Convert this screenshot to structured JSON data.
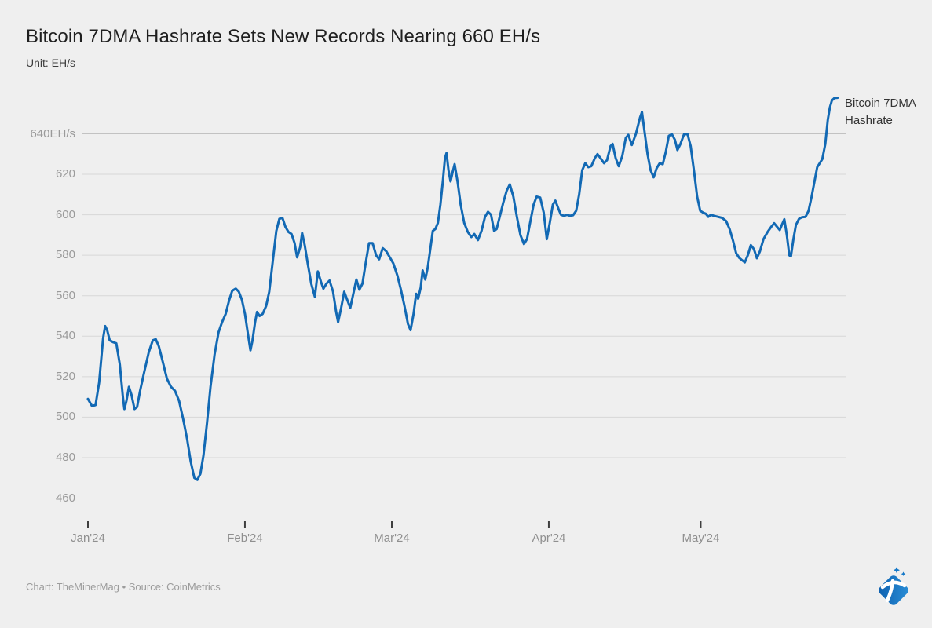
{
  "header": {
    "title": "Bitcoin 7DMA Hashrate Sets New Records Nearing 660 EH/s",
    "subtitle": "Unit: EH/s"
  },
  "legend": {
    "series_label": "Bitcoin 7DMA Hashrate"
  },
  "footer": {
    "credit": "Chart: TheMinerMag • Source: CoinMetrics",
    "logo": "theminermag-pickaxe-diamond-logo"
  },
  "colors": {
    "background": "#efefef",
    "line": "#1269b4",
    "gridline": "#d7d7d7",
    "gridline_top": "#c2c2c2",
    "tick_mark": "#3f3f3f",
    "axis_label": "#9a9a9a",
    "logo_blue": "#1478c8"
  },
  "chart_data": {
    "type": "line",
    "title": "Bitcoin 7DMA Hashrate Sets New Records Nearing 660 EH/s",
    "unit": "EH/s",
    "grid": true,
    "legend_position": "right-of-line-end",
    "x_axis": {
      "tick_labels": [
        "Jan'24",
        "Feb'24",
        "Mar'24",
        "Apr'24",
        "May'24"
      ],
      "tick_days": [
        0,
        31,
        60,
        91,
        121
      ],
      "range_days": [
        0,
        150
      ]
    },
    "y_axis": {
      "ticks": [
        460,
        480,
        500,
        520,
        540,
        560,
        580,
        600,
        620,
        640
      ],
      "top_tick_label": "640EH/s",
      "range": [
        455,
        662
      ]
    },
    "series": [
      {
        "name": "Bitcoin 7DMA Hashrate",
        "x_days_from_jan1_2024": [
          0,
          0.8,
          1.5,
          2.2,
          3,
          3.4,
          3.8,
          4.3,
          5,
          5.6,
          6.3,
          6.9,
          7.2,
          7.6,
          8.1,
          8.6,
          9.2,
          9.7,
          10.3,
          11,
          12,
          12.8,
          13.4,
          14,
          14.8,
          15.6,
          16.4,
          17.2,
          18,
          18.8,
          19.6,
          20.3,
          21,
          21.6,
          22.2,
          22.8,
          23.5,
          24.2,
          25,
          25.8,
          26.5,
          27.2,
          27.9,
          28.5,
          29.2,
          29.8,
          30.4,
          31,
          31.6,
          32.1,
          32.5,
          33,
          33.4,
          33.9,
          34.5,
          35.2,
          35.8,
          36.5,
          37.2,
          37.8,
          38.4,
          39,
          39.6,
          40.2,
          40.8,
          41.3,
          41.9,
          42.3,
          42.8,
          43.4,
          44.1,
          44.8,
          45.4,
          46,
          46.5,
          47.1,
          47.7,
          48.4,
          49,
          49.4,
          50,
          50.6,
          51.2,
          51.8,
          52.4,
          53,
          53.6,
          54.2,
          54.9,
          55.5,
          56.2,
          56.9,
          57.5,
          58.2,
          58.9,
          59.6,
          60.3,
          61.1,
          61.8,
          62.5,
          63.2,
          63.7,
          64.3,
          64.8,
          65.2,
          65.7,
          66.1,
          66.6,
          67.1,
          67.6,
          68.1,
          68.6,
          69.1,
          69.6,
          70.1,
          70.5,
          70.8,
          71.2,
          71.6,
          72,
          72.4,
          73,
          73.6,
          74.3,
          75,
          75.7,
          76.3,
          77,
          77.7,
          78.4,
          79,
          79.6,
          80.2,
          80.7,
          81.3,
          82,
          82.7,
          83.3,
          84,
          84.7,
          85.4,
          86.1,
          86.7,
          87.3,
          88,
          88.6,
          89.3,
          90,
          90.6,
          91.2,
          91.8,
          92.3,
          92.9,
          93.4,
          94,
          94.6,
          95.2,
          95.8,
          96.4,
          97,
          97.6,
          98.2,
          98.8,
          99.4,
          100.1,
          100.6,
          101.2,
          101.9,
          102.5,
          103.2,
          103.6,
          104.2,
          104.8,
          105.5,
          106.2,
          106.7,
          107.4,
          108.2,
          109,
          109.4,
          109.9,
          110.5,
          111.1,
          111.7,
          112.3,
          112.9,
          113.5,
          114.1,
          114.7,
          115.3,
          115.9,
          116.4,
          117,
          117.7,
          118.4,
          119,
          119.7,
          120.3,
          120.9,
          121.5,
          122,
          122.5,
          123,
          123.6,
          124.4,
          125.2,
          126,
          126.7,
          127.4,
          128,
          128.6,
          129.2,
          129.7,
          130.3,
          130.9,
          131.5,
          132.1,
          132.7,
          133.4,
          134.2,
          134.9,
          135.5,
          136.1,
          136.6,
          137.1,
          137.5,
          138,
          138.5,
          138.8,
          139.3,
          139.8,
          140.4,
          141,
          141.7,
          142.3,
          142.9,
          143.5,
          144,
          144.5,
          145,
          145.6,
          146.1,
          146.5,
          146.9,
          147.4,
          148
        ],
        "values_ehs": [
          509,
          505.5,
          506,
          517,
          539,
          545,
          543,
          538,
          537,
          536.5,
          526,
          510,
          504,
          508,
          515,
          511,
          504,
          505,
          513,
          521,
          532,
          538,
          538.5,
          535,
          527,
          519,
          515,
          513,
          508,
          499,
          489,
          478,
          470,
          469,
          472,
          481,
          497,
          515,
          531,
          542,
          547,
          551,
          558,
          562.5,
          563.5,
          562,
          558,
          551,
          541,
          533,
          538,
          547,
          552,
          550,
          551,
          555,
          562,
          577,
          592,
          598,
          598.5,
          594,
          591.5,
          590.5,
          586,
          579,
          584,
          591,
          585,
          576,
          566,
          559.5,
          572,
          567,
          563.5,
          566,
          567.5,
          562,
          552,
          547,
          554,
          562,
          558,
          554,
          561,
          568,
          563,
          566,
          577,
          586,
          586,
          580,
          578,
          583.5,
          582,
          579,
          576,
          570,
          563,
          555,
          546,
          543,
          551,
          561,
          558.5,
          564,
          572.5,
          568,
          574,
          583,
          592,
          593,
          596,
          605,
          617,
          628,
          630.5,
          622,
          616.5,
          621,
          625,
          616,
          605,
          596,
          591.5,
          589,
          590.5,
          587.5,
          592,
          599,
          601.5,
          600,
          592,
          593,
          599,
          606,
          612,
          615,
          609,
          599,
          590,
          585.5,
          588,
          596,
          605,
          609,
          608.5,
          601,
          588,
          596,
          605,
          607,
          603,
          600,
          599.5,
          600,
          599.5,
          599.8,
          602,
          610,
          622,
          625.5,
          623.5,
          624,
          628,
          630,
          628,
          625.5,
          627,
          634,
          635,
          628,
          624,
          629,
          638,
          639.5,
          634.5,
          640,
          648,
          650.8,
          641,
          630,
          622,
          618.5,
          623,
          625.5,
          625,
          631,
          639,
          639.8,
          637,
          632,
          635,
          639.8,
          639.8,
          634,
          621,
          609,
          602,
          601,
          600.5,
          599,
          600,
          599.5,
          599,
          598.5,
          597,
          593,
          587,
          581,
          578.7,
          577.5,
          576.5,
          580,
          585,
          583,
          578.5,
          582,
          588,
          591.5,
          594,
          595.8,
          594,
          592.5,
          595.5,
          597.8,
          590,
          580,
          579.5,
          588,
          595,
          598,
          598.8,
          599,
          602,
          609,
          617,
          623.5,
          625.5,
          627.5,
          635,
          647,
          653,
          656.5,
          657.7,
          657.8
        ]
      }
    ]
  }
}
